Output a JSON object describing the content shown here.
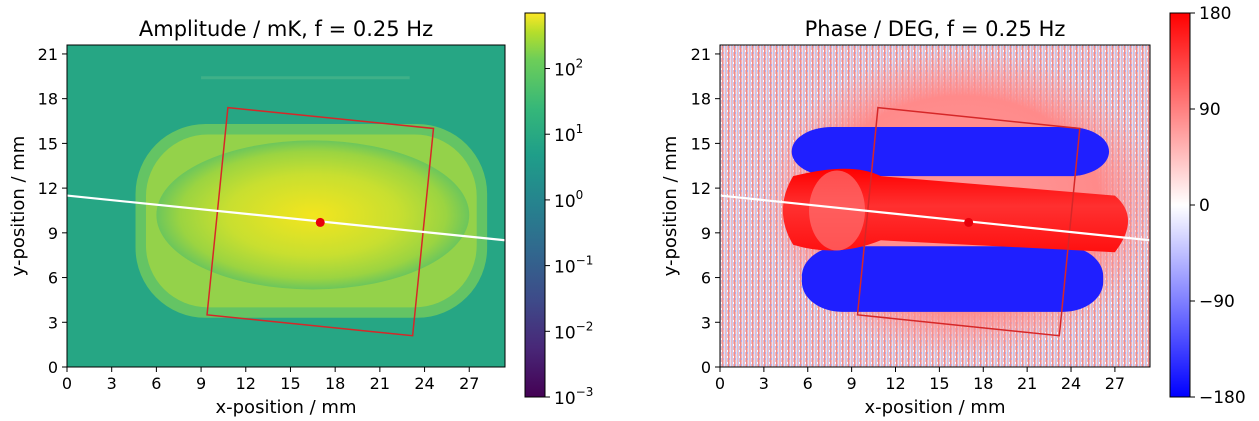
{
  "chart_data": [
    {
      "type": "heatmap",
      "title": "Amplitude / mK, f = 0.25 Hz",
      "xlabel": "x-position / mm",
      "ylabel": "y-position / mm",
      "xlim": [
        0,
        29.4
      ],
      "ylim": [
        0,
        21.6
      ],
      "xticks": [
        "0",
        "3",
        "6",
        "9",
        "12",
        "15",
        "18",
        "21",
        "24",
        "27"
      ],
      "yticks": [
        "0",
        "3",
        "6",
        "9",
        "12",
        "15",
        "18",
        "21"
      ],
      "colormap": "viridis",
      "color_scale": "log",
      "colorbar_range": [
        0.001,
        700
      ],
      "colorbar_ticks": [
        {
          "value": 100,
          "base": "10",
          "exp": "2"
        },
        {
          "value": 10,
          "base": "10",
          "exp": "1"
        },
        {
          "value": 1,
          "base": "10",
          "exp": "0"
        },
        {
          "value": 0.1,
          "base": "10",
          "exp": "−1"
        },
        {
          "value": 0.01,
          "base": "10",
          "exp": "−2"
        },
        {
          "value": 0.001,
          "base": "10",
          "exp": "−3"
        }
      ],
      "overlays": {
        "rectangle_corners": [
          [
            10.8,
            17.4
          ],
          [
            24.6,
            16.0
          ],
          [
            23.2,
            2.1
          ],
          [
            9.4,
            3.5
          ]
        ],
        "rectangle_color": "#d62728",
        "line": [
          [
            0,
            11.5
          ],
          [
            29.4,
            8.5
          ]
        ],
        "line_color": "#ffffff",
        "point": [
          17.0,
          9.7
        ],
        "point_color": "#e8000b"
      }
    },
    {
      "type": "heatmap",
      "title": "Phase / DEG, f = 0.25 Hz",
      "xlabel": "x-position / mm",
      "ylabel": "y-position / mm",
      "xlim": [
        0,
        29.4
      ],
      "ylim": [
        0,
        21.6
      ],
      "xticks": [
        "0",
        "3",
        "6",
        "9",
        "12",
        "15",
        "18",
        "21",
        "24",
        "27"
      ],
      "yticks": [
        "0",
        "3",
        "6",
        "9",
        "12",
        "15",
        "18",
        "21"
      ],
      "colormap": "bwr",
      "color_scale": "linear",
      "colorbar_range": [
        -180,
        180
      ],
      "colorbar_ticks": [
        {
          "value": 180,
          "label": "180"
        },
        {
          "value": 90,
          "label": "90"
        },
        {
          "value": 0,
          "label": "0"
        },
        {
          "value": -90,
          "label": "−90"
        },
        {
          "value": -180,
          "label": "−180"
        }
      ],
      "overlays": {
        "rectangle_corners": [
          [
            10.8,
            17.4
          ],
          [
            24.6,
            16.0
          ],
          [
            23.2,
            2.1
          ],
          [
            9.4,
            3.5
          ]
        ],
        "rectangle_color": "#d62728",
        "line": [
          [
            0,
            11.5
          ],
          [
            29.4,
            8.5
          ]
        ],
        "line_color": "#ffffff",
        "point": [
          17.0,
          9.7
        ],
        "point_color": "#e8000b"
      }
    }
  ]
}
